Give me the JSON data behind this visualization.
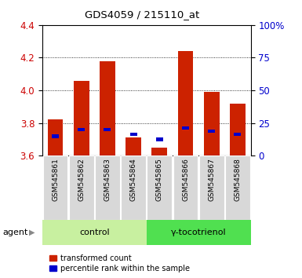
{
  "title": "GDS4059 / 215110_at",
  "samples": [
    "GSM545861",
    "GSM545862",
    "GSM545863",
    "GSM545864",
    "GSM545865",
    "GSM545866",
    "GSM545867",
    "GSM545868"
  ],
  "red_values": [
    3.82,
    4.06,
    4.18,
    3.71,
    3.65,
    4.24,
    3.99,
    3.92
  ],
  "blue_values": [
    3.72,
    3.76,
    3.76,
    3.73,
    3.7,
    3.77,
    3.75,
    3.73
  ],
  "ymin": 3.6,
  "ymax": 4.4,
  "yticks": [
    3.6,
    3.8,
    4.0,
    4.2,
    4.4
  ],
  "y2min": 0,
  "y2max": 100,
  "y2ticks": [
    0,
    25,
    50,
    75,
    100
  ],
  "y2ticklabels": [
    "0",
    "25",
    "50",
    "75",
    "100%"
  ],
  "group_labels": [
    "control",
    "γ-tocotrienol"
  ],
  "group_colors": [
    "#c8f0a0",
    "#50e050"
  ],
  "agent_label": "agent",
  "bar_color": "#cc2200",
  "percentile_color": "#0000cc",
  "bar_width": 0.6,
  "legend_items": [
    "transformed count",
    "percentile rank within the sample"
  ],
  "legend_colors": [
    "#cc2200",
    "#0000cc"
  ],
  "tick_label_color_left": "#cc0000",
  "tick_label_color_right": "#0000cc",
  "sample_box_color": "#d8d8d8",
  "sample_box_edge": "#aaaaaa"
}
